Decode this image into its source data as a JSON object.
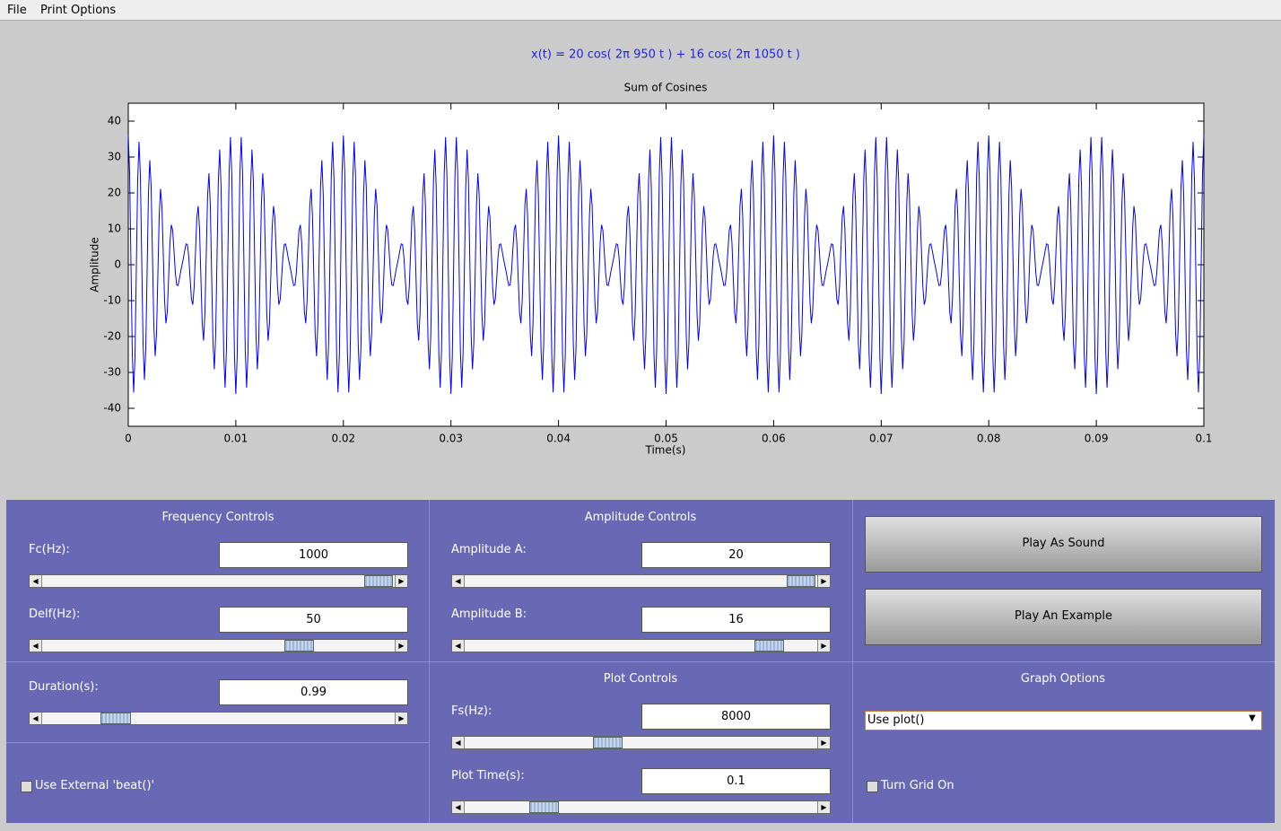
{
  "menu": [
    "File",
    "Print Options"
  ],
  "chart_data": {
    "type": "line",
    "formula": "x(t) = 20 cos( 2π 950 t ) + 16 cos( 2π 1050 t )",
    "title": "Sum of Cosines",
    "x_label": "Time(s)",
    "y_label": "Amplitude",
    "xlim": [
      0,
      0.1
    ],
    "xticks": [
      0,
      0.01,
      0.02,
      0.03,
      0.04,
      0.05,
      0.06,
      0.07,
      0.08,
      0.09,
      0.1
    ],
    "ylim": [
      -45,
      45
    ],
    "yticks": [
      -40,
      -30,
      -20,
      -10,
      0,
      10,
      20,
      30,
      40
    ],
    "color": "#0000ff",
    "grid": false
  },
  "frequency_controls": {
    "title": "Frequency Controls",
    "fc_label": "Fc(Hz):",
    "fc": 1000,
    "delf_label": "Delf(Hz):",
    "delf": 50,
    "duration_label": "Duration(s):",
    "duration": 0.99,
    "beat_checkbox": "Use External 'beat()'"
  },
  "amplitude_controls": {
    "title": "Amplitude Controls",
    "a_label": "Amplitude A:",
    "a": 20,
    "b_label": "Amplitude B:",
    "b": 16
  },
  "plot_controls": {
    "title": "Plot Controls",
    "fs_label": "Fs(Hz):",
    "fs": 8000,
    "plot_time_label": "Plot Time(s):",
    "plot_time": 0.1
  },
  "buttons": [
    "Play As Sound",
    "Play An Example"
  ],
  "graph_options": {
    "title": "Graph Options",
    "select": "Use plot()",
    "grid_checkbox": "Turn Grid On"
  }
}
